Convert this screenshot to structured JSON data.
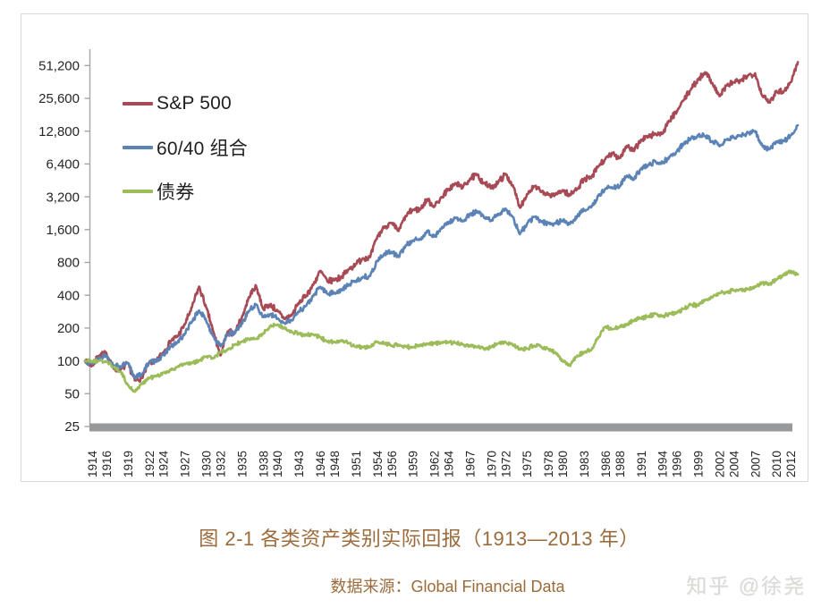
{
  "chart_data": {
    "type": "line",
    "title": "图 2-1 各类资产类别实际回报（1913—2013 年）",
    "source": "数据来源：Global Financial Data",
    "watermark": "知乎 @徐尧",
    "scale": "log2",
    "grid": false,
    "legend_position": "inside-top-left",
    "ylim": [
      25,
      51200
    ],
    "y_ticks": [
      "51,200",
      "25,600",
      "12,800",
      "6,400",
      "3,200",
      "1,600",
      "800",
      "400",
      "200",
      "100",
      "50",
      "25"
    ],
    "y_tick_values": [
      51200,
      25600,
      12800,
      6400,
      3200,
      1600,
      800,
      400,
      200,
      100,
      50,
      25
    ],
    "x_range": [
      1913,
      2013
    ],
    "x_tick_years": [
      1914,
      1916,
      1919,
      1922,
      1924,
      1927,
      1930,
      1932,
      1935,
      1938,
      1940,
      1943,
      1946,
      1948,
      1951,
      1954,
      1956,
      1959,
      1962,
      1964,
      1967,
      1970,
      1972,
      1975,
      1978,
      1980,
      1983,
      1986,
      1988,
      1991,
      1994,
      1996,
      1999,
      2002,
      2004,
      2007,
      2010,
      2012
    ],
    "start_year": 1913,
    "axis_colors": {
      "axis_line": "#a6a6a6",
      "baseline_bar": "#98999b",
      "tick_text": "#262626"
    },
    "series": [
      {
        "name": "S&P 500",
        "color": "#a84a55",
        "values": [
          100,
          90,
          112,
          118,
          85,
          83,
          95,
          66,
          70,
          96,
          100,
          120,
          152,
          168,
          215,
          310,
          480,
          310,
          185,
          112,
          185,
          180,
          250,
          385,
          490,
          300,
          330,
          285,
          242,
          262,
          342,
          395,
          495,
          670,
          535,
          555,
          585,
          690,
          775,
          875,
          895,
          1370,
          1700,
          1820,
          1555,
          2140,
          2440,
          2440,
          3040,
          2590,
          3190,
          3740,
          4240,
          3890,
          4690,
          5090,
          4240,
          3890,
          4390,
          5190,
          4090,
          2540,
          3390,
          3990,
          3540,
          3340,
          3340,
          3690,
          3290,
          3790,
          4640,
          4740,
          6090,
          7090,
          7990,
          7290,
          9390,
          8390,
          10690,
          11390,
          12190,
          12090,
          15990,
          19190,
          24790,
          30990,
          37990,
          44490,
          35490,
          26790,
          33490,
          35990,
          36990,
          41490,
          43490,
          26990,
          23490,
          29990,
          29490,
          35990,
          54990
        ]
      },
      {
        "name": "60/40 组合",
        "color": "#5b83b6",
        "values": [
          100,
          94,
          108,
          112,
          90,
          88,
          96,
          70,
          76,
          97,
          100,
          113,
          135,
          148,
          178,
          230,
          290,
          235,
          168,
          136,
          176,
          180,
          220,
          288,
          330,
          252,
          266,
          246,
          222,
          236,
          286,
          320,
          390,
          478,
          412,
          422,
          446,
          500,
          540,
          590,
          600,
          830,
          960,
          1000,
          900,
          1150,
          1270,
          1300,
          1560,
          1380,
          1630,
          1860,
          2050,
          1900,
          2200,
          2350,
          2050,
          1950,
          2200,
          2500,
          2100,
          1450,
          1800,
          2100,
          1900,
          1830,
          1830,
          1950,
          1800,
          2100,
          2450,
          2550,
          3250,
          3800,
          3900,
          4000,
          5000,
          4600,
          5800,
          6200,
          6800,
          6600,
          7400,
          8300,
          9800,
          11000,
          11800,
          11500,
          10400,
          9300,
          10700,
          11300,
          11500,
          12400,
          12800,
          9500,
          8700,
          10300,
          10400,
          11700,
          14500
        ]
      },
      {
        "name": "债券",
        "color": "#9cbb59",
        "values": [
          100,
          99,
          100,
          98,
          88,
          80,
          60,
          52,
          62,
          70,
          72,
          78,
          82,
          88,
          94,
          95,
          100,
          110,
          106,
          120,
          128,
          140,
          150,
          158,
          160,
          178,
          210,
          215,
          200,
          185,
          178,
          172,
          175,
          165,
          150,
          148,
          155,
          145,
          135,
          133,
          135,
          150,
          145,
          138,
          140,
          135,
          133,
          140,
          142,
          145,
          146,
          148,
          147,
          142,
          138,
          135,
          128,
          135,
          145,
          148,
          140,
          128,
          130,
          138,
          135,
          128,
          118,
          100,
          90,
          110,
          120,
          125,
          165,
          205,
          195,
          205,
          215,
          235,
          245,
          255,
          270,
          255,
          270,
          275,
          300,
          330,
          320,
          365,
          380,
          420,
          430,
          445,
          450,
          455,
          475,
          520,
          500,
          560,
          620,
          660,
          620
        ]
      }
    ]
  }
}
